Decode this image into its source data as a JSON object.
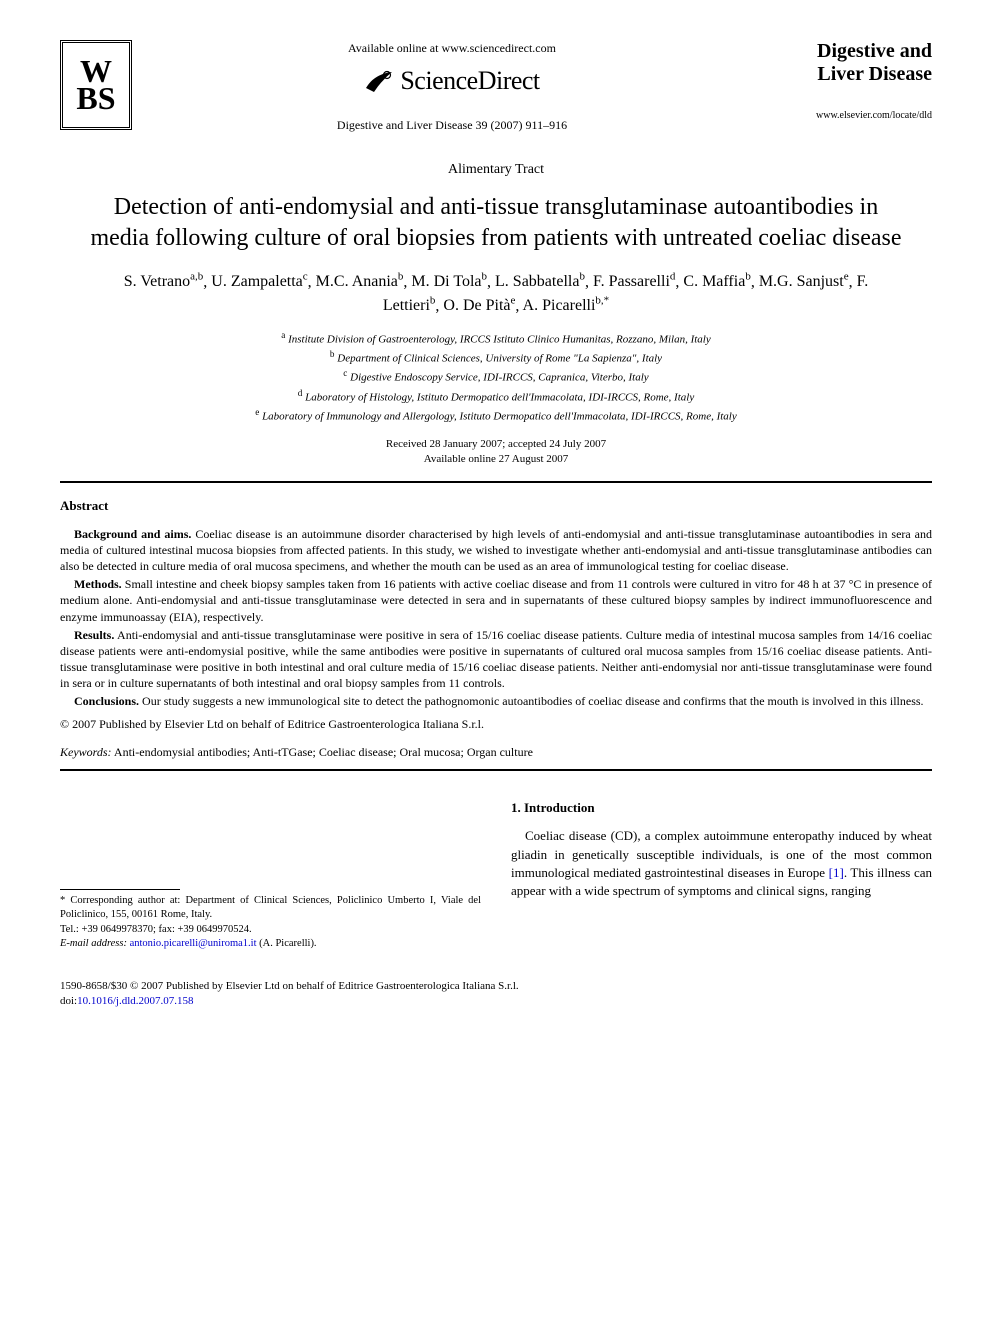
{
  "header": {
    "publisher_logo_text": "W\nBS",
    "available_online": "Available online at www.sciencedirect.com",
    "sciencedirect": "ScienceDirect",
    "journal_name_line1": "Digestive and",
    "journal_name_line2": "Liver Disease",
    "journal_url": "www.elsevier.com/locate/dld",
    "citation": "Digestive and Liver Disease 39 (2007) 911–916",
    "section_label": "Alimentary Tract"
  },
  "article": {
    "title": "Detection of anti-endomysial and anti-tissue transglutaminase autoantibodies in media following culture of oral biopsies from patients with untreated coeliac disease",
    "authors_html_parts": [
      {
        "name": "S. Vetrano",
        "sup": "a,b"
      },
      {
        "name": "U. Zampaletta",
        "sup": "c"
      },
      {
        "name": "M.C. Anania",
        "sup": "b"
      },
      {
        "name": "M. Di Tola",
        "sup": "b"
      },
      {
        "name": "L. Sabbatella",
        "sup": "b"
      },
      {
        "name": "F. Passarelli",
        "sup": "d"
      },
      {
        "name": "C. Maffia",
        "sup": "b"
      },
      {
        "name": "M.G. Sanjust",
        "sup": "e"
      },
      {
        "name": "F. Lettieri",
        "sup": "b"
      },
      {
        "name": "O. De Pità",
        "sup": "e"
      },
      {
        "name": "A. Picarelli",
        "sup": "b,*"
      }
    ],
    "affiliations": [
      {
        "key": "a",
        "text": "Institute Division of Gastroenterology, IRCCS Istituto Clinico Humanitas, Rozzano, Milan, Italy"
      },
      {
        "key": "b",
        "text": "Department of Clinical Sciences, University of Rome \"La Sapienza\", Italy"
      },
      {
        "key": "c",
        "text": "Digestive Endoscopy Service, IDI-IRCCS, Capranica, Viterbo, Italy"
      },
      {
        "key": "d",
        "text": "Laboratory of Histology, Istituto Dermopatico dell'Immacolata, IDI-IRCCS, Rome, Italy"
      },
      {
        "key": "e",
        "text": "Laboratory of Immunology and Allergology, Istituto Dermopatico dell'Immacolata, IDI-IRCCS, Rome, Italy"
      }
    ],
    "dates_line1": "Received 28 January 2007; accepted 24 July 2007",
    "dates_line2": "Available online 27 August 2007"
  },
  "abstract": {
    "heading": "Abstract",
    "sections": [
      {
        "label": "Background and aims.",
        "text": "Coeliac disease is an autoimmune disorder characterised by high levels of anti-endomysial and anti-tissue transglutaminase autoantibodies in sera and media of cultured intestinal mucosa biopsies from affected patients. In this study, we wished to investigate whether anti-endomysial and anti-tissue transglutaminase antibodies can also be detected in culture media of oral mucosa specimens, and whether the mouth can be used as an area of immunological testing for coeliac disease."
      },
      {
        "label": "Methods.",
        "text": "Small intestine and cheek biopsy samples taken from 16 patients with active coeliac disease and from 11 controls were cultured in vitro for 48 h at 37 °C in presence of medium alone. Anti-endomysial and anti-tissue transglutaminase were detected in sera and in supernatants of these cultured biopsy samples by indirect immunofluorescence and enzyme immunoassay (EIA), respectively."
      },
      {
        "label": "Results.",
        "text": "Anti-endomysial and anti-tissue transglutaminase were positive in sera of 15/16 coeliac disease patients. Culture media of intestinal mucosa samples from 14/16 coeliac disease patients were anti-endomysial positive, while the same antibodies were positive in supernatants of cultured oral mucosa samples from 15/16 coeliac disease patients. Anti-tissue transglutaminase were positive in both intestinal and oral culture media of 15/16 coeliac disease patients. Neither anti-endomysial nor anti-tissue transglutaminase were found in sera or in culture supernatants of both intestinal and oral biopsy samples from 11 controls."
      },
      {
        "label": "Conclusions.",
        "text": "Our study suggests a new immunological site to detect the pathognomonic autoantibodies of coeliac disease and confirms that the mouth is involved in this illness."
      }
    ],
    "copyright": "© 2007 Published by Elsevier Ltd on behalf of Editrice Gastroenterologica Italiana S.r.l.",
    "keywords_label": "Keywords:",
    "keywords": "Anti-endomysial antibodies; Anti-tTGase; Coeliac disease; Oral mucosa; Organ culture"
  },
  "footnote": {
    "corresponding_label": "* Corresponding author at:",
    "corresponding_text": "Department of Clinical Sciences, Policlinico Umberto I, Viale del Policlinico, 155, 00161 Rome, Italy.",
    "tel_label": "Tel.:",
    "tel": "+39 0649978370;",
    "fax_label": "fax:",
    "fax": "+39 0649970524.",
    "email_label": "E-mail address:",
    "email": "antonio.picarelli@uniroma1.it",
    "email_attrib": "(A. Picarelli)."
  },
  "intro": {
    "heading": "1. Introduction",
    "body_pre": "Coeliac disease (CD), a complex autoimmune enteropathy induced by wheat gliadin in genetically susceptible individuals, is one of the most common immunological mediated gastrointestinal diseases in Europe ",
    "ref": "[1]",
    "body_post": ". This illness can appear with a wide spectrum of symptoms and clinical signs, ranging"
  },
  "footer": {
    "issn_line": "1590-8658/$30 © 2007 Published by Elsevier Ltd on behalf of Editrice Gastroenterologica Italiana S.r.l.",
    "doi_label": "doi:",
    "doi": "10.1016/j.dld.2007.07.158"
  },
  "colors": {
    "link": "#0000cc",
    "text": "#000000",
    "background": "#ffffff"
  }
}
